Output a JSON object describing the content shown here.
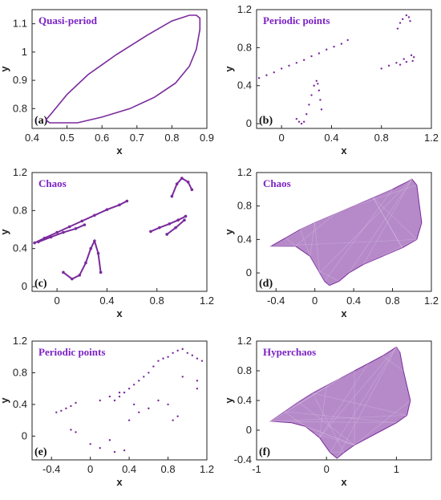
{
  "colors": {
    "trajectory": "#7a2a9c",
    "title": "#7b22c4",
    "axes": "#222222"
  },
  "chart_data": [
    {
      "id": "a",
      "type": "line",
      "title": "Quasi-period",
      "label": "(a)",
      "xlabel": "x",
      "ylabel": "y",
      "xlim": [
        0.4,
        0.9
      ],
      "ylim": [
        0.73,
        1.15
      ],
      "xticks": [
        "0.4",
        "0.5",
        "0.6",
        "0.7",
        "0.8",
        "0.9"
      ],
      "yticks": [
        "0.8",
        "0.9",
        "1",
        "1.1"
      ],
      "series": [
        {
          "x": [
            0.44,
            0.45,
            0.48,
            0.53,
            0.6,
            0.68,
            0.75,
            0.81,
            0.85,
            0.87,
            0.88,
            0.88,
            0.87,
            0.85,
            0.8,
            0.73,
            0.64,
            0.56,
            0.5,
            0.46,
            0.44
          ],
          "y": [
            0.76,
            0.75,
            0.75,
            0.75,
            0.77,
            0.8,
            0.84,
            0.89,
            0.95,
            1.01,
            1.08,
            1.12,
            1.13,
            1.13,
            1.11,
            1.06,
            0.99,
            0.92,
            0.85,
            0.79,
            0.76
          ]
        }
      ]
    },
    {
      "id": "b",
      "type": "scatter",
      "title": "Periodic points",
      "label": "(b)",
      "xlabel": "x",
      "ylabel": "y",
      "xlim": [
        -0.2,
        1.2
      ],
      "ylim": [
        -0.05,
        1.2
      ],
      "xticks": [
        "0",
        "0.4",
        "0.8",
        "1.2"
      ],
      "yticks": [
        "0",
        "0.4",
        "0.8",
        "1.2"
      ],
      "series": [
        {
          "x": [
            -0.18,
            -0.12,
            -0.06,
            0.0,
            0.06,
            0.12,
            0.18,
            0.24,
            0.3,
            0.36,
            0.42,
            0.48,
            0.53,
            0.12,
            0.14,
            0.16,
            0.18,
            0.2,
            0.22,
            0.24,
            0.26,
            0.28,
            0.29,
            0.3,
            0.31,
            0.32,
            0.93,
            0.95,
            0.97,
            1.0,
            1.02,
            1.03,
            0.8,
            0.86,
            0.92,
            0.98,
            1.04,
            1.06,
            0.95,
            1.0,
            1.05
          ],
          "y": [
            0.48,
            0.51,
            0.54,
            0.58,
            0.61,
            0.64,
            0.67,
            0.71,
            0.74,
            0.78,
            0.81,
            0.84,
            0.88,
            0.05,
            0.02,
            0.0,
            0.02,
            0.1,
            0.2,
            0.3,
            0.4,
            0.45,
            0.42,
            0.35,
            0.25,
            0.15,
            1.0,
            1.06,
            1.1,
            1.14,
            1.12,
            1.08,
            0.58,
            0.61,
            0.64,
            0.68,
            0.72,
            0.7,
            0.62,
            0.65,
            0.66
          ]
        }
      ]
    },
    {
      "id": "c",
      "type": "scatter",
      "title": "Chaos",
      "label": "(c)",
      "xlabel": "x",
      "ylabel": "y",
      "xlim": [
        -0.2,
        1.2
      ],
      "ylim": [
        -0.05,
        1.2
      ],
      "xticks": [
        "0",
        "0.4",
        "0.8",
        "1.2"
      ],
      "yticks": [
        "0",
        "0.4",
        "0.8",
        "1.2"
      ],
      "series": [
        {
          "x": [
            -0.18,
            -0.1,
            0.0,
            0.1,
            0.2,
            0.3,
            0.4,
            0.5,
            0.56,
            -0.15,
            -0.05,
            0.05,
            0.15,
            0.22,
            0.05,
            0.12,
            0.18,
            0.23,
            0.27,
            0.3,
            0.33,
            0.35,
            0.75,
            0.82,
            0.9,
            0.97,
            1.03,
            0.88,
            0.95,
            1.02,
            0.92,
            0.96,
            1.0,
            1.05,
            1.08
          ],
          "y": [
            0.46,
            0.51,
            0.57,
            0.63,
            0.69,
            0.75,
            0.81,
            0.86,
            0.9,
            0.47,
            0.52,
            0.57,
            0.61,
            0.65,
            0.15,
            0.08,
            0.12,
            0.25,
            0.4,
            0.48,
            0.35,
            0.15,
            0.58,
            0.62,
            0.66,
            0.7,
            0.74,
            0.55,
            0.62,
            0.7,
            0.95,
            1.08,
            1.14,
            1.1,
            1.02
          ]
        }
      ]
    },
    {
      "id": "d",
      "type": "scatter",
      "title": "Chaos",
      "label": "(d)",
      "xlabel": "x",
      "ylabel": "y",
      "xlim": [
        -0.6,
        1.2
      ],
      "ylim": [
        -0.22,
        1.2
      ],
      "xticks": [
        "-0.4",
        "0",
        "0.4",
        "0.8",
        "1.2"
      ],
      "yticks": [
        "0",
        "0.4",
        "0.8",
        "1.2"
      ],
      "series": [
        {
          "x": [
            -0.45,
            -0.3,
            -0.15,
            0.0,
            0.2,
            0.4,
            0.6,
            0.8,
            1.0,
            1.05,
            1.1,
            1.05,
            0.9,
            0.7,
            0.5,
            0.35,
            0.25,
            0.15,
            0.1,
            0.05,
            -0.05,
            -0.2,
            -0.45
          ],
          "y": [
            0.32,
            0.42,
            0.52,
            0.6,
            0.7,
            0.8,
            0.9,
            1.0,
            1.12,
            1.05,
            0.6,
            0.4,
            0.3,
            0.2,
            0.1,
            0.0,
            -0.1,
            -0.15,
            -0.1,
            0.0,
            0.2,
            0.32,
            0.32
          ]
        }
      ]
    },
    {
      "id": "e",
      "type": "scatter",
      "title": "Periodic points",
      "label": "(e)",
      "xlabel": "x",
      "ylabel": "y",
      "xlim": [
        -0.6,
        1.2
      ],
      "ylim": [
        -0.3,
        1.2
      ],
      "xticks": [
        "-0.4",
        "0",
        "0.4",
        "0.8",
        "1.2"
      ],
      "yticks": [
        "0",
        "0.4",
        "0.8",
        "1.2"
      ],
      "series": [
        {
          "x": [
            -0.35,
            -0.3,
            -0.25,
            -0.2,
            -0.15,
            -0.2,
            -0.15,
            0.0,
            0.1,
            0.2,
            0.25,
            0.3,
            0.35,
            0.4,
            0.45,
            0.5,
            0.55,
            0.6,
            0.65,
            0.7,
            0.75,
            0.8,
            0.85,
            0.9,
            0.95,
            1.0,
            1.05,
            1.1,
            1.15,
            1.1,
            0.85,
            0.9,
            0.8,
            0.7,
            0.6,
            0.5,
            0.4,
            0.2,
            0.1,
            0.3,
            0.45,
            0.25,
            0.35,
            0.95,
            1.1
          ],
          "y": [
            0.3,
            0.32,
            0.35,
            0.38,
            0.42,
            0.08,
            0.05,
            -0.1,
            -0.15,
            -0.05,
            0.45,
            0.5,
            0.55,
            0.6,
            0.65,
            0.7,
            0.75,
            0.8,
            0.88,
            0.95,
            0.98,
            1.0,
            1.05,
            1.08,
            1.1,
            1.05,
            1.02,
            0.98,
            0.95,
            0.6,
            0.2,
            0.25,
            0.4,
            0.45,
            0.35,
            0.3,
            0.2,
            0.5,
            0.45,
            0.55,
            0.4,
            -0.2,
            -0.18,
            0.75,
            0.7
          ]
        }
      ]
    },
    {
      "id": "f",
      "type": "scatter",
      "title": "Hyperchaos",
      "label": "(f)",
      "xlabel": "x",
      "ylabel": "y",
      "xlim": [
        -1.0,
        1.5
      ],
      "ylim": [
        -0.4,
        1.2
      ],
      "xticks": [
        "-1",
        "0",
        "1"
      ],
      "yticks": [
        "-0.4",
        "0",
        "0.4",
        "0.8",
        "1.2"
      ],
      "series": [
        {
          "x": [
            -0.8,
            -0.6,
            -0.4,
            -0.2,
            0.0,
            0.2,
            0.4,
            0.6,
            0.8,
            1.0,
            1.05,
            1.1,
            1.2,
            1.15,
            1.0,
            0.8,
            0.6,
            0.4,
            0.25,
            0.15,
            0.05,
            -0.1,
            -0.3,
            -0.5,
            -0.8
          ],
          "y": [
            0.12,
            0.25,
            0.38,
            0.5,
            0.6,
            0.7,
            0.8,
            0.9,
            1.0,
            1.12,
            1.05,
            0.8,
            0.4,
            0.2,
            0.1,
            0.0,
            -0.1,
            -0.2,
            -0.3,
            -0.38,
            -0.3,
            -0.1,
            0.05,
            0.1,
            0.12
          ]
        }
      ]
    }
  ]
}
